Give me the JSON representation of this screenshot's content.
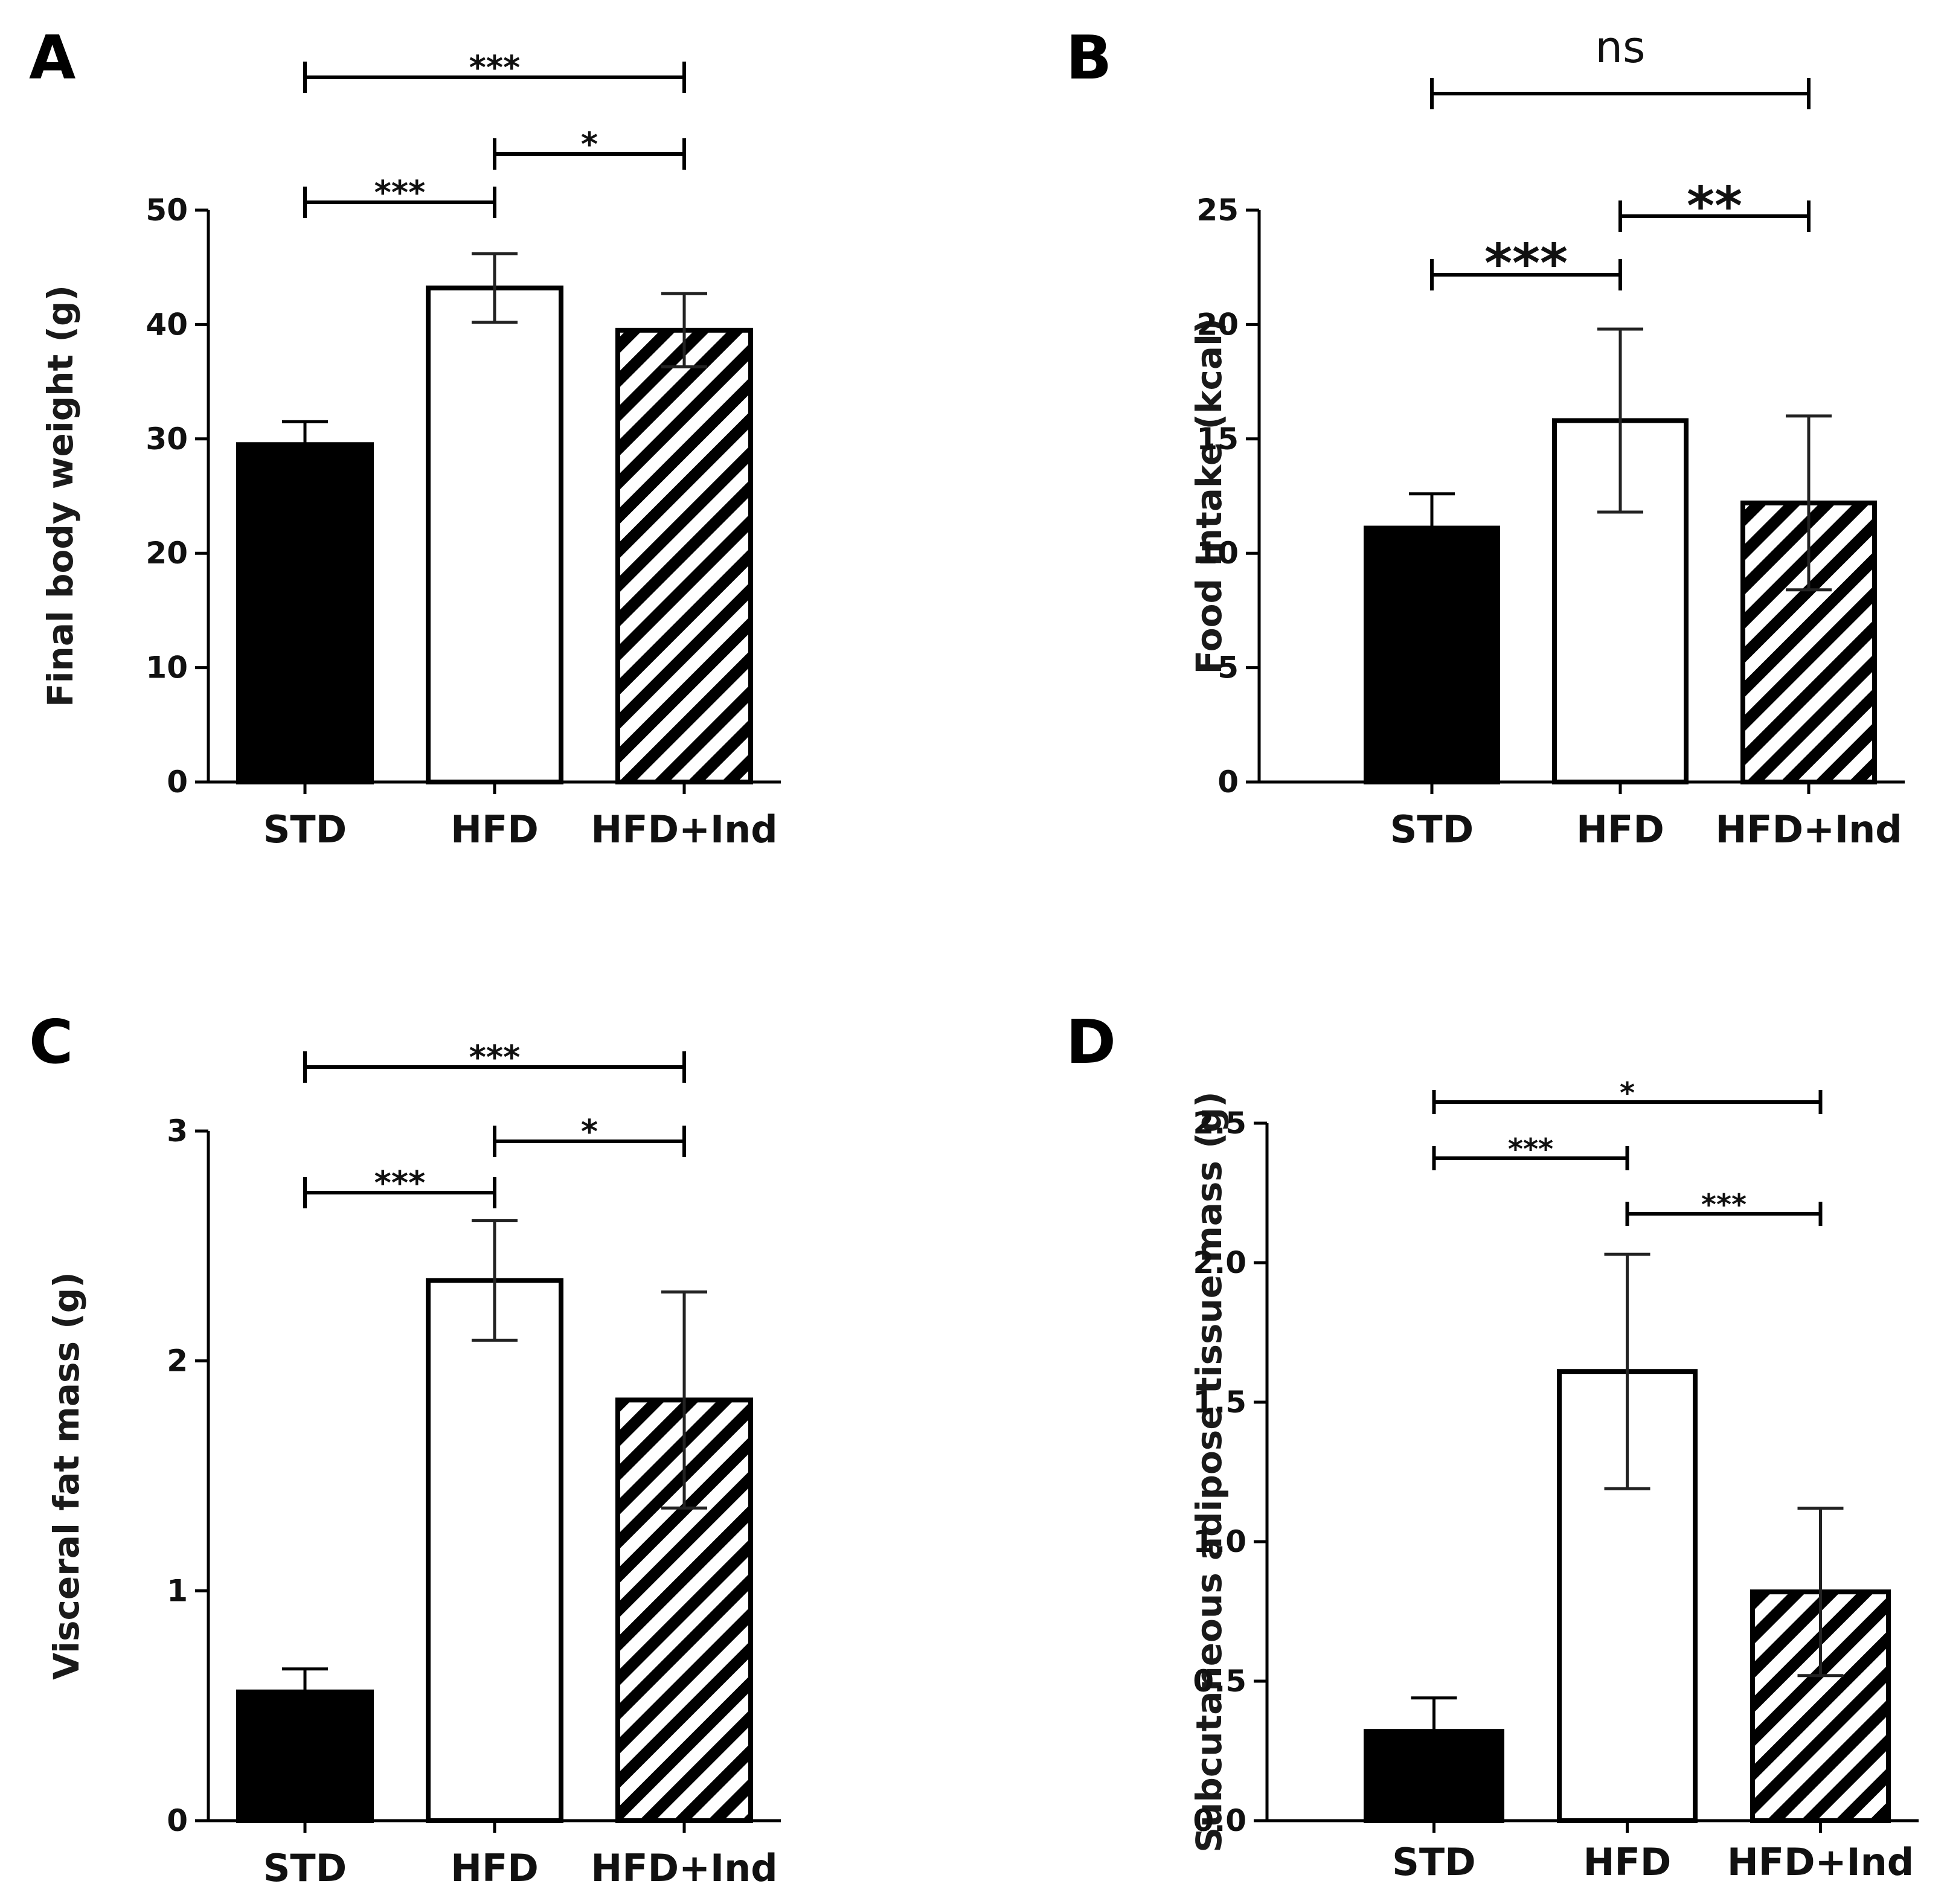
{
  "chart_data": [
    {
      "panel": "A",
      "type": "bar",
      "categories": [
        "STD",
        "HFD",
        "HFD+Ind"
      ],
      "values": [
        29.5,
        43.2,
        39.5
      ],
      "errors": [
        2.0,
        3.0,
        3.2
      ],
      "fills": [
        "solid",
        "open",
        "hatched"
      ],
      "ylabel": "Final body weight (g)",
      "ylim": [
        0,
        50
      ],
      "yticks": [
        0,
        10,
        20,
        30,
        40,
        50
      ],
      "ytick_labels": [
        "0",
        "10",
        "20",
        "30",
        "40",
        "50"
      ],
      "significance": [
        {
          "from": 0,
          "to": 2,
          "label": "***"
        },
        {
          "from": 0,
          "to": 1,
          "label": "***"
        },
        {
          "from": 1,
          "to": 2,
          "label": "*"
        }
      ]
    },
    {
      "panel": "B",
      "type": "bar",
      "categories": [
        "STD",
        "HFD",
        "HFD+Ind"
      ],
      "values": [
        11.1,
        15.8,
        12.2
      ],
      "errors": [
        1.5,
        4.0,
        3.8
      ],
      "fills": [
        "solid",
        "open",
        "hatched"
      ],
      "ylabel": "Food Intake (kcal)",
      "ylim": [
        0,
        25
      ],
      "yticks": [
        0,
        5,
        10,
        15,
        20,
        25
      ],
      "ytick_labels": [
        "0",
        "5",
        "10",
        "15",
        "20",
        "25"
      ],
      "significance": [
        {
          "from": 0,
          "to": 2,
          "label": "ns"
        },
        {
          "from": 0,
          "to": 1,
          "label": "***"
        },
        {
          "from": 1,
          "to": 2,
          "label": "**"
        }
      ]
    },
    {
      "panel": "C",
      "type": "bar",
      "categories": [
        "STD",
        "HFD",
        "HFD+Ind"
      ],
      "values": [
        0.56,
        2.35,
        1.83
      ],
      "errors": [
        0.1,
        0.26,
        0.47
      ],
      "fills": [
        "solid",
        "open",
        "hatched"
      ],
      "ylabel": "Visceral fat mass (g)",
      "ylim": [
        0,
        3
      ],
      "yticks": [
        0,
        1,
        2,
        3
      ],
      "ytick_labels": [
        "0",
        "1",
        "2",
        "3"
      ],
      "significance": [
        {
          "from": 0,
          "to": 2,
          "label": "***"
        },
        {
          "from": 0,
          "to": 1,
          "label": "***"
        },
        {
          "from": 1,
          "to": 2,
          "label": "*"
        }
      ]
    },
    {
      "panel": "D",
      "type": "bar",
      "categories": [
        "STD",
        "HFD",
        "HFD+Ind"
      ],
      "values": [
        0.32,
        1.61,
        0.82
      ],
      "errors": [
        0.12,
        0.42,
        0.3
      ],
      "fills": [
        "solid",
        "open",
        "hatched"
      ],
      "ylabel": "Subcutaneous adipose tissue mass (g)",
      "ylim": [
        0,
        2.5
      ],
      "yticks": [
        0,
        0.5,
        1.0,
        1.5,
        2.0,
        2.5
      ],
      "ytick_labels": [
        "0.0",
        "0.5",
        "1.0",
        "1.5",
        "2.0",
        "2.5"
      ],
      "significance": [
        {
          "from": 0,
          "to": 2,
          "label": "*"
        },
        {
          "from": 1,
          "to": 2,
          "label": "***"
        },
        {
          "from": 0,
          "to": 1,
          "label": "***"
        }
      ]
    }
  ]
}
